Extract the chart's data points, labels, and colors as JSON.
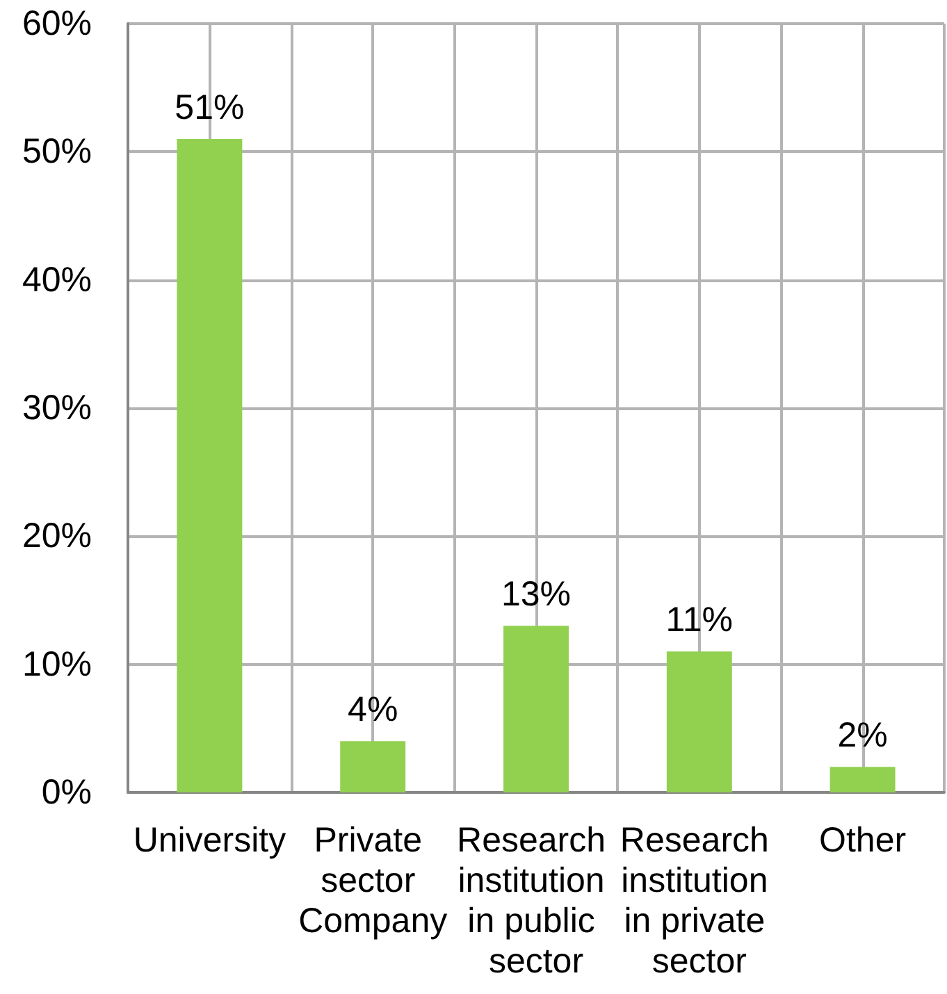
{
  "chart_data": {
    "type": "bar",
    "categories": [
      "University",
      "Private sector Company",
      "Research institution in public sector",
      "Research institution in private sector",
      "Other"
    ],
    "values": [
      51,
      4,
      13,
      11,
      2
    ],
    "color": "#92d050",
    "value_labels": [
      "51%",
      "4%",
      "13%",
      "11%",
      "2%"
    ],
    "ylim": [
      0,
      60
    ],
    "yticks": [
      {
        "value": 0,
        "label": "0%"
      },
      {
        "value": 10,
        "label": "10%"
      },
      {
        "value": 20,
        "label": "20%"
      },
      {
        "value": 30,
        "label": "30%"
      },
      {
        "value": 40,
        "label": "40%"
      },
      {
        "value": 50,
        "label": "50%"
      },
      {
        "value": 60,
        "label": "60%"
      }
    ],
    "grid": true
  }
}
